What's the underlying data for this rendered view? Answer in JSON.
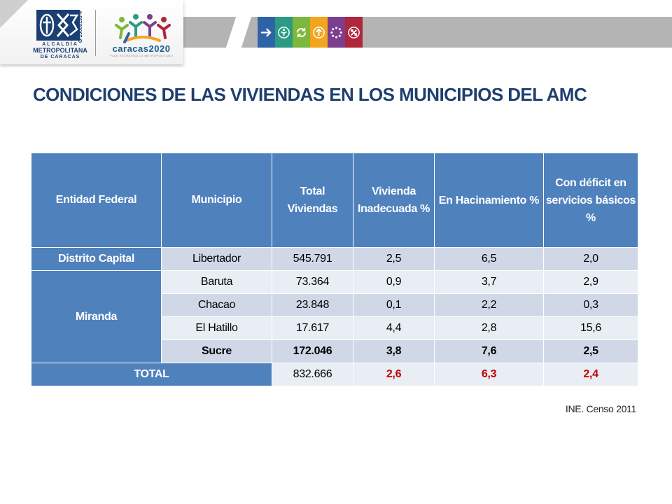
{
  "header": {
    "amc_logo": {
      "line1": "ALCALDÍA",
      "line2": "METROPOLITANA",
      "line3": "DE CARACAS",
      "code": "G-20000153-4",
      "icon": "amc-crest-icon"
    },
    "caracas2020_logo": {
      "main": "caracas2020",
      "sub": "PLAN ESTRATÉGICO METROPOLITANO",
      "icon": "people-circle-icon"
    },
    "icon_strip": [
      {
        "icon": "arrow-right-icon",
        "color": "#2f63a8"
      },
      {
        "icon": "person-arrow-icon",
        "color": "#2c9b84"
      },
      {
        "icon": "cycle-arrows-icon",
        "color": "#7db73c"
      },
      {
        "icon": "arrow-up-icon",
        "color": "#f2a51d"
      },
      {
        "icon": "dots-circle-icon",
        "color": "#7b3f8e"
      },
      {
        "icon": "arrows-cross-icon",
        "color": "#b0263a"
      }
    ]
  },
  "title": "CONDICIONES DE LAS VIVIENDAS EN LOS MUNICIPIOS DEL AMC",
  "table": {
    "headers": {
      "entidad": "Entidad Federal",
      "municipio": "Municipio",
      "total": "Total Viviendas",
      "inadecuada": "Vivienda Inadecuada %",
      "hacinamiento": "En Hacinamiento %",
      "deficit": "Con déficit en servicios básicos %"
    },
    "groups": {
      "distrito": "Distrito Capital",
      "miranda": "Miranda"
    },
    "rows": [
      {
        "municipio": "Libertador",
        "total": "545.791",
        "inadecuada": "2,5",
        "hacinamiento": "6,5",
        "deficit": "2,0"
      },
      {
        "municipio": "Baruta",
        "total": "73.364",
        "inadecuada": "0,9",
        "hacinamiento": "3,7",
        "deficit": "2,9"
      },
      {
        "municipio": "Chacao",
        "total": "23.848",
        "inadecuada": "0,1",
        "hacinamiento": "2,2",
        "deficit": "0,3"
      },
      {
        "municipio": "El Hatillo",
        "total": "17.617",
        "inadecuada": "4,4",
        "hacinamiento": "2,8",
        "deficit": "15,6"
      },
      {
        "municipio": "Sucre",
        "total": "172.046",
        "inadecuada": "3,8",
        "hacinamiento": "7,6",
        "deficit": "2,5"
      }
    ],
    "total_row": {
      "label": "TOTAL",
      "total": "832.666",
      "inadecuada": "2,6",
      "hacinamiento": "6,3",
      "deficit": "2,4"
    },
    "colors": {
      "header": "#4f81bd",
      "row_dark": "#d0d8e8",
      "row_light": "#e9edf4",
      "total_highlight": "#c00000"
    }
  },
  "source": "INE. Censo 2011"
}
